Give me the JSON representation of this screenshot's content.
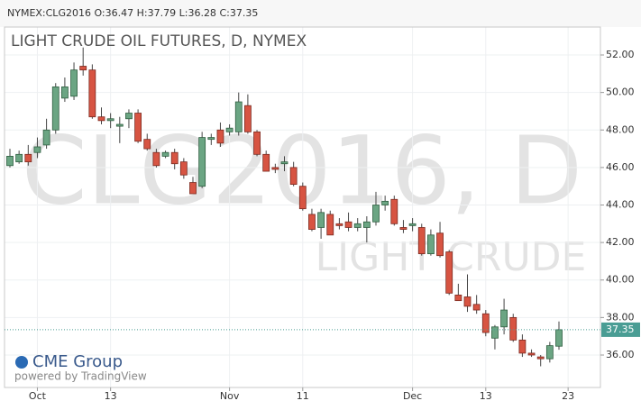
{
  "header": {
    "symbol": "NYMEX:CLG2016",
    "quote": [
      "O:36.47",
      "H:37.79",
      "L:36.28",
      "C:37.35"
    ]
  },
  "chart_data": {
    "type": "candlestick",
    "title": "LIGHT CRUDE OIL FUTURES, D, NYMEX",
    "watermark": [
      "CLG2016, D",
      "LIGHT CRUDE"
    ],
    "branding": [
      "CME Group",
      "powered by TradingView"
    ],
    "categories": [
      null,
      null,
      null,
      "Oct",
      null,
      null,
      null,
      null,
      null,
      null,
      null,
      "13",
      null,
      null,
      null,
      null,
      null,
      null,
      null,
      null,
      null,
      null,
      null,
      null,
      "Nov",
      null,
      null,
      null,
      null,
      null,
      null,
      null,
      "11",
      null,
      null,
      null,
      null,
      null,
      null,
      null,
      null,
      null,
      null,
      null,
      "Dec",
      null,
      null,
      null,
      null,
      null,
      null,
      null,
      "13",
      null,
      null,
      null,
      null,
      null,
      null,
      null,
      null,
      "23"
    ],
    "open": [
      46.1,
      46.3,
      46.7,
      46.8,
      47.2,
      48.0,
      49.7,
      49.8,
      51.4,
      51.2,
      48.7,
      48.5,
      48.2,
      48.6,
      48.9,
      47.5,
      46.8,
      46.6,
      46.8,
      46.3,
      45.2,
      45.0,
      47.5,
      48.0,
      47.9,
      47.9,
      49.3,
      47.9,
      46.7,
      46.0,
      46.2,
      46.0,
      45.0,
      43.5,
      42.8,
      43.5,
      43.0,
      43.1,
      42.8,
      42.8,
      43.1,
      44.0,
      44.3,
      42.8,
      42.9,
      42.8,
      41.4,
      42.5,
      41.5,
      39.2,
      39.1,
      38.7,
      38.2,
      36.9,
      37.5,
      38.0,
      36.8,
      36.1,
      35.9,
      35.8,
      36.47,
      null
    ],
    "high": [
      47.0,
      46.9,
      47.2,
      47.6,
      48.6,
      50.5,
      50.8,
      51.6,
      52.4,
      51.5,
      49.2,
      48.9,
      48.7,
      49.1,
      49.1,
      47.8,
      47.0,
      46.9,
      47.0,
      46.5,
      45.5,
      47.9,
      47.8,
      48.4,
      48.3,
      50.0,
      49.9,
      48.0,
      46.9,
      46.2,
      46.6,
      46.3,
      45.2,
      43.8,
      43.8,
      43.7,
      43.3,
      43.6,
      43.3,
      43.4,
      44.7,
      44.5,
      44.5,
      43.2,
      43.3,
      43.0,
      42.7,
      43.1,
      41.6,
      39.8,
      40.3,
      39.2,
      38.4,
      37.6,
      39.0,
      38.2,
      37.1,
      36.3,
      36.0,
      36.7,
      37.79,
      null
    ],
    "low": [
      46.0,
      46.2,
      46.1,
      46.5,
      47.0,
      47.8,
      49.5,
      49.6,
      50.9,
      48.6,
      48.3,
      48.1,
      47.3,
      48.1,
      47.3,
      46.9,
      46.0,
      46.5,
      45.9,
      45.4,
      44.6,
      44.9,
      47.2,
      47.1,
      47.7,
      47.7,
      47.8,
      46.6,
      45.8,
      45.7,
      45.8,
      45.0,
      43.7,
      42.6,
      42.2,
      42.4,
      42.7,
      42.6,
      42.6,
      42.0,
      42.9,
      43.7,
      42.9,
      42.5,
      42.6,
      41.3,
      41.3,
      41.2,
      39.2,
      38.9,
      38.3,
      38.2,
      37.0,
      36.3,
      37.1,
      36.7,
      35.9,
      35.9,
      35.4,
      35.6,
      36.28,
      null
    ],
    "close": [
      46.6,
      46.7,
      46.3,
      47.1,
      48.0,
      50.3,
      50.3,
      51.2,
      51.2,
      48.7,
      48.5,
      48.6,
      48.3,
      48.9,
      47.4,
      47.0,
      46.1,
      46.8,
      46.2,
      45.6,
      44.6,
      47.6,
      47.6,
      47.3,
      48.1,
      49.5,
      47.9,
      46.7,
      45.8,
      45.9,
      46.3,
      45.1,
      43.8,
      42.7,
      43.6,
      42.4,
      42.9,
      42.8,
      43.0,
      43.1,
      44.0,
      44.2,
      43.0,
      42.7,
      43.0,
      41.4,
      42.4,
      41.3,
      39.3,
      38.9,
      38.6,
      38.4,
      37.2,
      37.5,
      38.4,
      36.8,
      36.1,
      36.0,
      35.8,
      36.5,
      37.35,
      null
    ],
    "up_color": "#6ba583",
    "down_color": "#d75442",
    "last_price": 37.35,
    "last_price_color": "#4a9d94",
    "ylim": [
      34.27,
      53.49
    ],
    "yticks": [
      {
        "value": 36,
        "label": "36.00"
      },
      {
        "value": 38,
        "label": "38.00"
      },
      {
        "value": 40,
        "label": "40.00"
      },
      {
        "value": 42,
        "label": "42.00"
      },
      {
        "value": 44,
        "label": "44.00"
      },
      {
        "value": 46,
        "label": "46.00"
      },
      {
        "value": 48,
        "label": "48.00"
      },
      {
        "value": 50,
        "label": "50.00"
      },
      {
        "value": 52,
        "label": "52.00"
      }
    ],
    "grid": true
  }
}
